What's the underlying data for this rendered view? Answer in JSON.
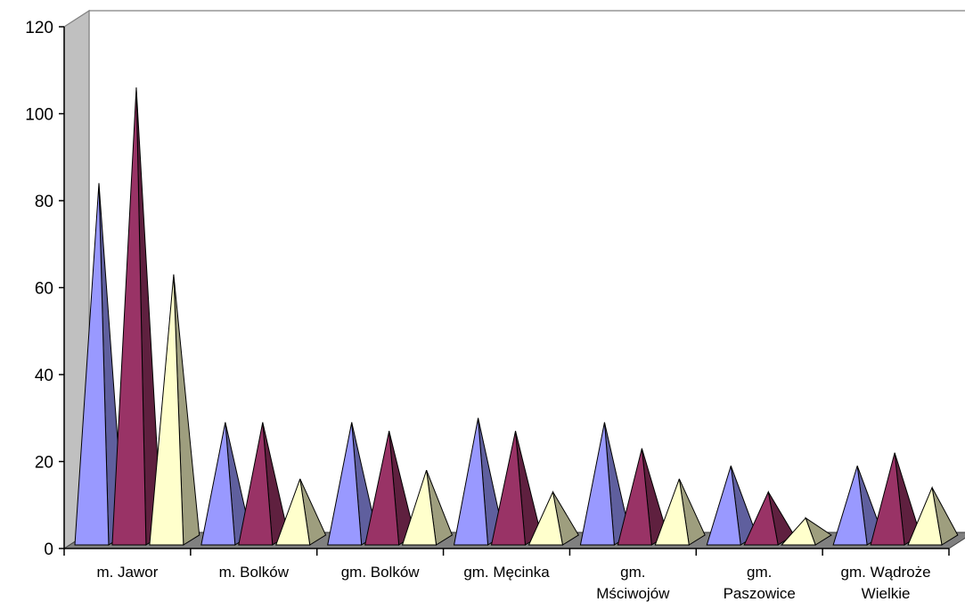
{
  "chart_data": {
    "type": "bar",
    "style": "3d-pyramid",
    "categories": [
      [
        "m. Jawor"
      ],
      [
        "m. Bolków"
      ],
      [
        "gm. Bolków"
      ],
      [
        "gm. Męcinka"
      ],
      [
        "gm.",
        "Mściwojów"
      ],
      [
        "gm.",
        "Paszowice"
      ],
      [
        "gm. Wądroże",
        "Wielkie"
      ]
    ],
    "series": [
      {
        "color": "#9999ff",
        "values": [
          83,
          28,
          28,
          29,
          28,
          18,
          18
        ]
      },
      {
        "color": "#993366",
        "values": [
          105,
          28,
          26,
          26,
          22,
          12,
          21
        ]
      },
      {
        "color": "#ffffcc",
        "values": [
          62,
          15,
          17,
          12,
          15,
          6,
          13
        ]
      }
    ],
    "ylim": [
      0,
      120
    ],
    "yticks": [
      "0",
      "20",
      "40",
      "60",
      "80",
      "100",
      "120"
    ],
    "wall_color": "#c0c0c0",
    "floor_color": "#808080",
    "grid": false,
    "legend": "none"
  }
}
